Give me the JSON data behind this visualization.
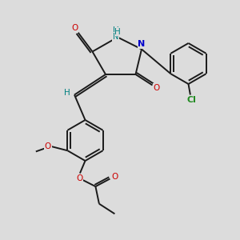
{
  "bg_color": "#dcdcdc",
  "bond_color": "#1a1a1a",
  "lw": 1.4,
  "o_color": "#cc0000",
  "n_color": "#0000cc",
  "nh_color": "#008080",
  "cl_color": "#228B22",
  "h_color": "#008080",
  "fs": 7.5,
  "xlim": [
    0,
    10
  ],
  "ylim": [
    0,
    10
  ]
}
